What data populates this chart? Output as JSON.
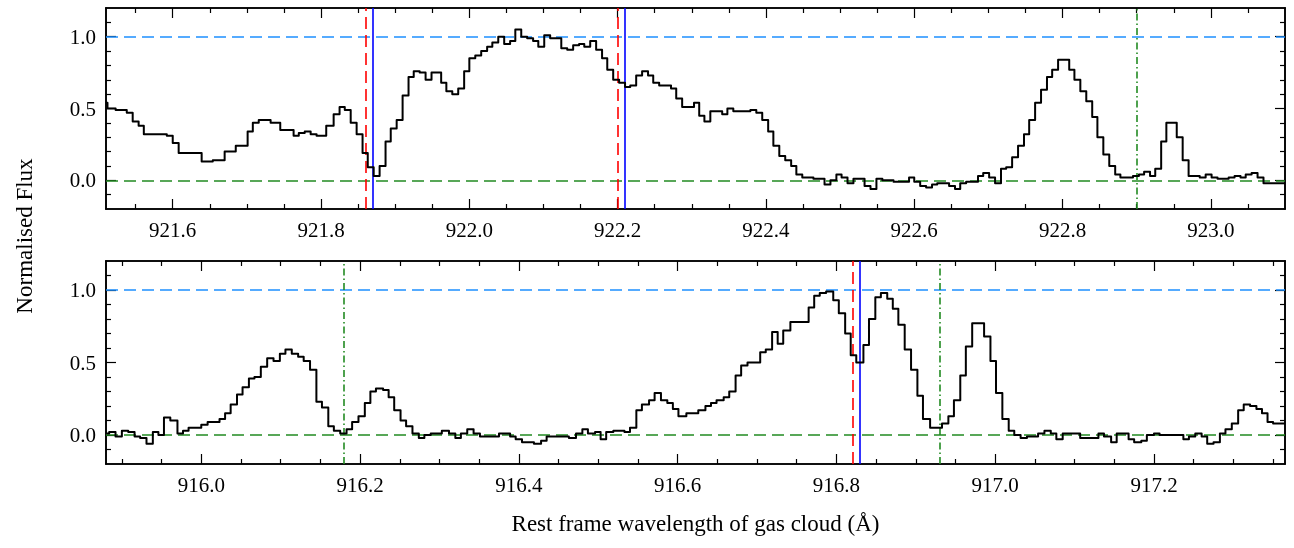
{
  "chart_data": [
    {
      "type": "step",
      "ylabel": "Normalised Flux",
      "marker": "none",
      "color": "#000000",
      "xlim": [
        921.51,
        923.1
      ],
      "ylim": [
        -0.2,
        1.2
      ],
      "xticks": [
        921.6,
        921.8,
        {
          "value": 922.0,
          "label": "922.0"
        },
        922.2,
        922.4,
        922.6,
        922.8,
        {
          "value": 923.0,
          "label": "923.0"
        },
        {
          "value": 921.55,
          "label": null
        },
        {
          "value": 921.65,
          "label": null
        },
        {
          "value": 921.7,
          "label": null
        },
        {
          "value": 921.75,
          "label": null
        },
        {
          "value": 921.85,
          "label": null
        },
        {
          "value": 921.9,
          "label": null
        },
        {
          "value": 921.95,
          "label": null
        },
        {
          "value": 922.05,
          "label": null
        },
        {
          "value": 922.1,
          "label": null
        },
        {
          "value": 922.15,
          "label": null
        },
        {
          "value": 922.25,
          "label": null
        },
        {
          "value": 922.3,
          "label": null
        },
        {
          "value": 922.35,
          "label": null
        },
        {
          "value": 922.45,
          "label": null
        },
        {
          "value": 922.5,
          "label": null
        },
        {
          "value": 922.55,
          "label": null
        },
        {
          "value": 922.65,
          "label": null
        },
        {
          "value": 922.7,
          "label": null
        },
        {
          "value": 922.75,
          "label": null
        },
        {
          "value": 922.85,
          "label": null
        },
        {
          "value": 922.9,
          "label": null
        },
        {
          "value": 922.95,
          "label": null
        },
        {
          "value": 923.05,
          "label": null
        }
      ],
      "yticks": [
        {
          "value": 0,
          "label": "0.0"
        },
        0.5,
        {
          "value": 1,
          "label": "1.0"
        },
        {
          "value": -0.1,
          "label": null
        },
        {
          "value": 0.1,
          "label": null
        },
        {
          "value": 0.2,
          "label": null
        },
        {
          "value": 0.3,
          "label": null
        },
        {
          "value": 0.4,
          "label": null
        },
        {
          "value": 0.6,
          "label": null
        },
        {
          "value": 0.7,
          "label": null
        },
        {
          "value": 0.8,
          "label": null
        },
        {
          "value": 0.9,
          "label": null
        },
        {
          "value": 1.1,
          "label": null
        }
      ],
      "x": [
        921.51,
        921.512,
        921.523,
        921.538,
        921.546,
        921.554,
        921.561,
        921.592,
        921.6,
        921.608,
        921.639,
        921.654,
        921.67,
        921.685,
        921.701,
        921.708,
        921.716,
        921.732,
        921.745,
        921.763,
        921.77,
        921.778,
        921.786,
        921.794,
        921.807,
        921.817,
        921.825,
        921.832,
        921.84,
        921.848,
        921.856,
        921.863,
        921.871,
        921.879,
        921.887,
        921.894,
        921.902,
        921.91,
        921.918,
        921.925,
        921.933,
        921.941,
        921.949,
        921.962,
        921.969,
        921.977,
        921.985,
        921.993,
        922.0,
        922.008,
        922.016,
        922.024,
        922.031,
        922.039,
        922.047,
        922.055,
        922.062,
        922.07,
        922.078,
        922.086,
        922.093,
        922.101,
        922.109,
        922.124,
        922.132,
        922.14,
        922.148,
        922.155,
        922.163,
        922.171,
        922.179,
        922.186,
        922.194,
        922.202,
        922.21,
        922.217,
        922.225,
        922.233,
        922.241,
        922.248,
        922.256,
        922.272,
        922.279,
        922.287,
        922.303,
        922.31,
        922.317,
        922.325,
        922.341,
        922.348,
        922.356,
        922.379,
        922.387,
        922.395,
        922.403,
        922.41,
        922.418,
        922.426,
        922.434,
        922.441,
        922.449,
        922.464,
        922.479,
        922.487,
        922.495,
        922.502,
        922.51,
        922.518,
        922.533,
        922.541,
        922.549,
        922.557,
        922.572,
        922.593,
        922.6,
        922.608,
        922.616,
        922.624,
        922.631,
        922.647,
        922.655,
        922.662,
        922.67,
        922.686,
        922.693,
        922.701,
        922.709,
        922.717,
        922.724,
        922.732,
        922.74,
        922.748,
        922.755,
        922.763,
        922.771,
        922.779,
        922.786,
        922.794,
        922.809,
        922.816,
        922.824,
        922.832,
        922.84,
        922.847,
        922.855,
        922.863,
        922.871,
        922.878,
        922.895,
        922.903,
        922.91,
        922.918,
        922.925,
        922.933,
        922.94,
        922.954,
        922.962,
        922.97,
        922.985,
        922.993,
        923.001,
        923.009,
        923.024,
        923.032,
        923.04,
        923.047,
        923.055,
        923.063,
        923.071,
        923.1
      ],
      "values": [
        0.54,
        0.5,
        0.49,
        0.47,
        0.41,
        0.38,
        0.32,
        0.31,
        0.26,
        0.19,
        0.13,
        0.14,
        0.2,
        0.24,
        0.34,
        0.4,
        0.42,
        0.4,
        0.35,
        0.31,
        0.33,
        0.34,
        0.32,
        0.31,
        0.38,
        0.46,
        0.51,
        0.49,
        0.4,
        0.32,
        0.19,
        0.09,
        0.03,
        0.1,
        0.27,
        0.36,
        0.42,
        0.59,
        0.72,
        0.76,
        0.75,
        0.7,
        0.75,
        0.68,
        0.62,
        0.6,
        0.64,
        0.76,
        0.85,
        0.87,
        0.9,
        0.93,
        0.96,
        1.0,
        0.95,
        0.97,
        1.05,
        1.0,
        0.99,
        0.97,
        0.93,
        1.01,
        0.99,
        0.92,
        0.91,
        0.94,
        0.95,
        0.93,
        0.97,
        0.91,
        0.85,
        0.77,
        0.7,
        0.68,
        0.65,
        0.66,
        0.73,
        0.76,
        0.73,
        0.68,
        0.66,
        0.64,
        0.57,
        0.51,
        0.54,
        0.45,
        0.41,
        0.48,
        0.46,
        0.5,
        0.48,
        0.49,
        0.47,
        0.42,
        0.34,
        0.24,
        0.17,
        0.14,
        0.1,
        0.04,
        0.02,
        0.01,
        -0.03,
        0.0,
        0.04,
        0.02,
        -0.02,
        0.01,
        -0.04,
        -0.06,
        0.01,
        0.0,
        -0.01,
        0.02,
        -0.01,
        -0.04,
        -0.05,
        -0.03,
        -0.02,
        -0.04,
        -0.06,
        -0.02,
        -0.01,
        0.03,
        0.05,
        0.02,
        -0.02,
        0.08,
        0.09,
        0.16,
        0.24,
        0.32,
        0.42,
        0.54,
        0.63,
        0.72,
        0.77,
        0.84,
        0.77,
        0.7,
        0.62,
        0.55,
        0.44,
        0.3,
        0.18,
        0.1,
        0.04,
        0.02,
        0.03,
        0.04,
        0.06,
        0.03,
        0.08,
        0.27,
        0.4,
        0.3,
        0.14,
        0.03,
        0.02,
        0.04,
        0.02,
        0.01,
        0.02,
        0.03,
        0.02,
        0.04,
        0.05,
        0.02,
        -0.02,
        -0.02
      ],
      "ref_lines": [
        {
          "axis": "y",
          "value": 1,
          "color": "#1e90ff",
          "line_style": "dashed"
        },
        {
          "axis": "y",
          "value": 0,
          "color": "#228b22",
          "line_style": "dashed"
        },
        {
          "axis": "x",
          "value": 921.857,
          "color": "#ff0000",
          "line_style": "dashed"
        },
        {
          "axis": "x",
          "value": 921.87,
          "color": "#0000ff",
          "line_style": "solid"
        },
        {
          "axis": "x",
          "value": 922.202,
          "color": "#ff0000",
          "line_style": "dashed"
        },
        {
          "axis": "x",
          "value": 922.208,
          "color": "#0000ff",
          "line_style": "solid"
        },
        {
          "axis": "x",
          "value": 922.9,
          "color": "#228b22",
          "line_style": "dashdot"
        }
      ]
    },
    {
      "type": "step",
      "xlabel": "Rest frame wavelength of gas cloud (Å)",
      "marker": "none",
      "color": "#000000",
      "xlim": [
        915.88,
        917.365
      ],
      "ylim": [
        -0.2,
        1.2
      ],
      "xticks": [
        {
          "value": 916.0,
          "label": "916.0"
        },
        916.2,
        916.4,
        916.6,
        916.8,
        {
          "value": 917.0,
          "label": "917.0"
        },
        917.2,
        {
          "value": 915.9,
          "label": null
        },
        {
          "value": 915.95,
          "label": null
        },
        {
          "value": 916.05,
          "label": null
        },
        {
          "value": 916.1,
          "label": null
        },
        {
          "value": 916.15,
          "label": null
        },
        {
          "value": 916.25,
          "label": null
        },
        {
          "value": 916.3,
          "label": null
        },
        {
          "value": 916.35,
          "label": null
        },
        {
          "value": 916.45,
          "label": null
        },
        {
          "value": 916.5,
          "label": null
        },
        {
          "value": 916.55,
          "label": null
        },
        {
          "value": 916.65,
          "label": null
        },
        {
          "value": 916.7,
          "label": null
        },
        {
          "value": 916.75,
          "label": null
        },
        {
          "value": 916.85,
          "label": null
        },
        {
          "value": 916.9,
          "label": null
        },
        {
          "value": 916.95,
          "label": null
        },
        {
          "value": 917.05,
          "label": null
        },
        {
          "value": 917.1,
          "label": null
        },
        {
          "value": 917.15,
          "label": null
        },
        {
          "value": 917.25,
          "label": null
        },
        {
          "value": 917.3,
          "label": null
        },
        {
          "value": 917.35,
          "label": null
        }
      ],
      "yticks": [
        {
          "value": 0,
          "label": "0.0"
        },
        0.5,
        {
          "value": 1,
          "label": "1.0"
        },
        {
          "value": -0.1,
          "label": null
        },
        {
          "value": 0.1,
          "label": null
        },
        {
          "value": 0.2,
          "label": null
        },
        {
          "value": 0.3,
          "label": null
        },
        {
          "value": 0.4,
          "label": null
        },
        {
          "value": 0.6,
          "label": null
        },
        {
          "value": 0.7,
          "label": null
        },
        {
          "value": 0.8,
          "label": null
        },
        {
          "value": 0.9,
          "label": null
        },
        {
          "value": 1.1,
          "label": null
        }
      ],
      "x": [
        915.881,
        915.884,
        915.892,
        915.9,
        915.908,
        915.916,
        915.923,
        915.931,
        915.939,
        915.946,
        915.953,
        915.961,
        915.97,
        915.977,
        915.984,
        916.0,
        916.008,
        916.023,
        916.03,
        916.037,
        916.045,
        916.052,
        916.06,
        916.067,
        916.075,
        916.083,
        916.091,
        916.099,
        916.106,
        916.114,
        916.122,
        916.129,
        916.137,
        916.145,
        916.152,
        916.16,
        916.167,
        916.175,
        916.183,
        916.19,
        916.198,
        916.206,
        916.213,
        916.22,
        916.229,
        916.236,
        916.243,
        916.251,
        916.258,
        916.266,
        916.274,
        916.281,
        916.289,
        916.303,
        916.312,
        916.32,
        916.327,
        916.335,
        916.343,
        916.351,
        916.375,
        916.389,
        916.396,
        916.404,
        916.419,
        916.428,
        916.435,
        916.463,
        916.472,
        916.48,
        916.487,
        916.496,
        916.503,
        916.51,
        916.519,
        916.533,
        916.54,
        916.548,
        916.555,
        916.564,
        916.571,
        916.579,
        916.587,
        916.594,
        916.601,
        916.611,
        916.626,
        916.635,
        916.642,
        916.649,
        916.658,
        916.665,
        916.673,
        916.68,
        916.688,
        916.704,
        916.711,
        916.719,
        916.726,
        916.733,
        916.742,
        916.765,
        916.772,
        916.779,
        916.787,
        916.796,
        916.803,
        916.811,
        916.818,
        916.825,
        916.834,
        916.841,
        916.849,
        916.856,
        916.864,
        916.871,
        916.878,
        916.886,
        916.894,
        916.902,
        916.909,
        916.918,
        916.933,
        916.941,
        916.948,
        916.956,
        916.963,
        916.971,
        916.986,
        916.994,
        917.001,
        917.009,
        917.017,
        917.024,
        917.032,
        917.04,
        917.054,
        917.062,
        917.07,
        917.077,
        917.085,
        917.107,
        917.13,
        917.137,
        917.146,
        917.153,
        917.168,
        917.175,
        917.184,
        917.191,
        917.2,
        917.207,
        917.237,
        917.244,
        917.252,
        917.26,
        917.267,
        917.275,
        917.283,
        917.29,
        917.298,
        917.306,
        917.313,
        917.321,
        917.329,
        917.336,
        917.343,
        917.35,
        917.365
      ],
      "values": [
        0.01,
        0.02,
        -0.01,
        0.03,
        0.02,
        -0.01,
        -0.02,
        -0.06,
        0.02,
        0.0,
        0.12,
        0.1,
        0.01,
        0.03,
        0.05,
        0.07,
        0.09,
        0.11,
        0.15,
        0.21,
        0.28,
        0.33,
        0.39,
        0.4,
        0.47,
        0.53,
        0.51,
        0.56,
        0.59,
        0.56,
        0.54,
        0.51,
        0.45,
        0.23,
        0.19,
        0.06,
        0.03,
        0.01,
        0.04,
        0.09,
        0.13,
        0.22,
        0.3,
        0.32,
        0.31,
        0.26,
        0.17,
        0.1,
        0.06,
        0.01,
        -0.02,
        0.0,
        0.01,
        0.03,
        0.01,
        -0.02,
        0.01,
        0.04,
        0.01,
        -0.01,
        0.01,
        -0.01,
        -0.03,
        -0.05,
        -0.06,
        -0.04,
        -0.01,
        -0.02,
        0.01,
        0.04,
        0.01,
        0.02,
        -0.03,
        0.02,
        0.03,
        0.02,
        0.05,
        0.17,
        0.21,
        0.24,
        0.29,
        0.24,
        0.22,
        0.18,
        0.13,
        0.15,
        0.17,
        0.2,
        0.22,
        0.24,
        0.26,
        0.3,
        0.41,
        0.48,
        0.5,
        0.57,
        0.59,
        0.71,
        0.63,
        0.72,
        0.78,
        0.88,
        0.96,
        0.98,
        0.99,
        0.93,
        0.84,
        0.7,
        0.55,
        0.5,
        0.62,
        0.8,
        0.95,
        0.98,
        0.94,
        0.87,
        0.76,
        0.59,
        0.45,
        0.27,
        0.11,
        0.05,
        0.08,
        0.13,
        0.24,
        0.41,
        0.61,
        0.77,
        0.68,
        0.51,
        0.29,
        0.11,
        0.03,
        0.0,
        -0.02,
        -0.01,
        0.01,
        0.03,
        0.01,
        -0.03,
        0.01,
        -0.02,
        0.01,
        -0.01,
        -0.05,
        0.01,
        -0.03,
        -0.05,
        -0.04,
        0.0,
        0.01,
        0.0,
        -0.03,
        -0.01,
        0.01,
        -0.01,
        -0.06,
        -0.05,
        0.01,
        0.04,
        0.08,
        0.17,
        0.21,
        0.2,
        0.18,
        0.15,
        0.09,
        0.08,
        0.08
      ],
      "ref_lines": [
        {
          "axis": "y",
          "value": 1,
          "color": "#1e90ff",
          "line_style": "dashed"
        },
        {
          "axis": "y",
          "value": 0,
          "color": "#228b22",
          "line_style": "dashed"
        },
        {
          "axis": "x",
          "value": 916.18,
          "color": "#228b22",
          "line_style": "dashdot"
        },
        {
          "axis": "x",
          "value": 916.816,
          "color": "#ff0000",
          "line_style": "dashed"
        },
        {
          "axis": "x",
          "value": 916.827,
          "color": "#0000ff",
          "line_style": "solid"
        },
        {
          "axis": "x",
          "value": 916.932,
          "color": "#228b22",
          "line_style": "dashdot"
        }
      ]
    }
  ]
}
